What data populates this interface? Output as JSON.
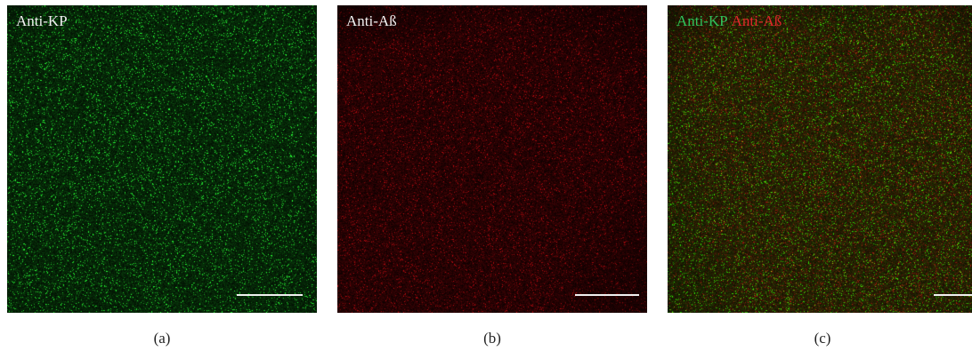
{
  "panels": [
    {
      "id": "a",
      "label": "Anti-KP",
      "caption": "(a)",
      "channel": "green",
      "color": "#2fc25b"
    },
    {
      "id": "b",
      "label": "Anti-Aß",
      "caption": "(b)",
      "channel": "red",
      "color": "#e0262b"
    },
    {
      "id": "c",
      "label_green": "Anti-KP",
      "label_red": "Anti-Aß",
      "caption": "(c)",
      "channel": "merge",
      "colors": [
        "#2fc25b",
        "#e0262b"
      ]
    }
  ]
}
